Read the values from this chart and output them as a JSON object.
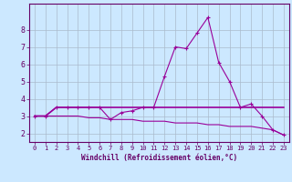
{
  "x": [
    0,
    1,
    2,
    3,
    4,
    5,
    6,
    7,
    8,
    9,
    10,
    11,
    12,
    13,
    14,
    15,
    16,
    17,
    18,
    19,
    20,
    21,
    22,
    23
  ],
  "line1": [
    3.0,
    3.0,
    3.5,
    3.5,
    3.5,
    3.5,
    3.5,
    2.8,
    3.2,
    3.3,
    3.5,
    3.5,
    5.3,
    7.0,
    6.9,
    7.8,
    8.7,
    6.1,
    5.0,
    3.5,
    3.7,
    3.0,
    2.2,
    1.9
  ],
  "line2": [
    3.0,
    3.0,
    3.5,
    3.5,
    3.5,
    3.5,
    3.5,
    3.5,
    3.5,
    3.5,
    3.5,
    3.5,
    3.5,
    3.5,
    3.5,
    3.5,
    3.5,
    3.5,
    3.5,
    3.5,
    3.5,
    3.5,
    3.5,
    3.5
  ],
  "line3": [
    3.0,
    3.0,
    3.0,
    3.0,
    3.0,
    2.9,
    2.9,
    2.8,
    2.8,
    2.8,
    2.7,
    2.7,
    2.7,
    2.6,
    2.6,
    2.6,
    2.5,
    2.5,
    2.4,
    2.4,
    2.4,
    2.3,
    2.2,
    1.9
  ],
  "line_color": "#990099",
  "bg_color": "#cce8ff",
  "grid_color": "#aabbcc",
  "xlabel": "Windchill (Refroidissement éolien,°C)",
  "xlabel_color": "#660066",
  "tick_color": "#660066",
  "ylim": [
    1.5,
    9.5
  ],
  "xlim": [
    -0.5,
    23.5
  ],
  "yticks": [
    2,
    3,
    4,
    5,
    6,
    7,
    8
  ],
  "xticks": [
    0,
    1,
    2,
    3,
    4,
    5,
    6,
    7,
    8,
    9,
    10,
    11,
    12,
    13,
    14,
    15,
    16,
    17,
    18,
    19,
    20,
    21,
    22,
    23
  ],
  "xtick_labels": [
    "0",
    "1",
    "2",
    "3",
    "4",
    "5",
    "6",
    "7",
    "8",
    "9",
    "10",
    "11",
    "12",
    "13",
    "14",
    "15",
    "16",
    "17",
    "18",
    "19",
    "20",
    "21",
    "22",
    "23"
  ]
}
